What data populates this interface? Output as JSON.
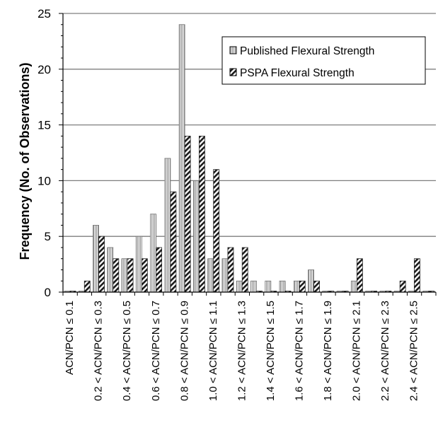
{
  "chart_data": {
    "type": "bar",
    "title": "",
    "xlabel": "",
    "ylabel": "Frequency (No. of Observations)",
    "ylim": [
      0,
      25
    ],
    "yticks": [
      "0",
      "5",
      "10",
      "15",
      "20",
      "25"
    ],
    "grid": true,
    "legend_position": "top-right",
    "categories": [
      "ACN/PCN ≤ 0.1",
      "0.1 < ACN/PCN ≤ 0.2",
      "0.2 < ACN/PCN ≤ 0.3",
      "0.3 < ACN/PCN ≤ 0.4",
      "0.4 < ACN/PCN ≤ 0.5",
      "0.5 < ACN/PCN ≤ 0.6",
      "0.6 < ACN/PCN ≤ 0.7",
      "0.7 < ACN/PCN ≤ 0.8",
      "0.8 < ACN/PCN ≤ 0.9",
      "0.9 < ACN/PCN ≤ 1.0",
      "1.0 < ACN/PCN ≤ 1.1",
      "1.1 < ACN/PCN ≤ 1.2",
      "1.2 < ACN/PCN ≤ 1.3",
      "1.3 < ACN/PCN ≤ 1.4",
      "1.4 < ACN/PCN ≤ 1.5",
      "1.5 < ACN/PCN ≤ 1.6",
      "1.6 < ACN/PCN ≤ 1.7",
      "1.7 < ACN/PCN ≤ 1.8",
      "1.8 < ACN/PCN ≤ 1.9",
      "1.9 < ACN/PCN ≤ 2.0",
      "2.0 < ACN/PCN ≤ 2.1",
      "2.1 < ACN/PCN ≤ 2.2",
      "2.2 < ACN/PCN ≤ 2.3",
      "2.3 < ACN/PCN ≤ 2.4",
      "2.4 < ACN/PCN ≤ 2.5",
      "2.5 < ACN/PCN ≤ 2.6"
    ],
    "category_labels_shown": [
      "ACN/PCN ≤ 0.1",
      "0.2 < ACN/PCN ≤ 0.3",
      "0.4 < ACN/PCN ≤ 0.5",
      "0.6 < ACN/PCN ≤ 0.7",
      "0.8 < ACN/PCN ≤ 0.9",
      "1.0 < ACN/PCN ≤ 1.1",
      "1.2 < ACN/PCN ≤ 1.3",
      "1.4 < ACN/PCN ≤ 1.5",
      "1.6 < ACN/PCN ≤ 1.7",
      "1.8 < ACN/PCN ≤ 1.9",
      "2.0 < ACN/PCN ≤ 2.1",
      "2.2 < ACN/PCN ≤ 2.3",
      "2.4 < ACN/PCN ≤ 2.5"
    ],
    "series": [
      {
        "name": "Published Flexural Strength",
        "pattern": "vertical-lines",
        "values": [
          0,
          0,
          6,
          4,
          3,
          5,
          7,
          12,
          24,
          10,
          3,
          3,
          1,
          1,
          1,
          1,
          1,
          2,
          0,
          0,
          1,
          0,
          0,
          0,
          0,
          0
        ]
      },
      {
        "name": "PSPA Flexural Strength",
        "pattern": "diagonal-hatch",
        "values": [
          0,
          1,
          5,
          3,
          3,
          3,
          4,
          9,
          14,
          14,
          11,
          4,
          4,
          0,
          0,
          0,
          1,
          1,
          0,
          0,
          3,
          0,
          0,
          1,
          3,
          0
        ]
      }
    ]
  }
}
